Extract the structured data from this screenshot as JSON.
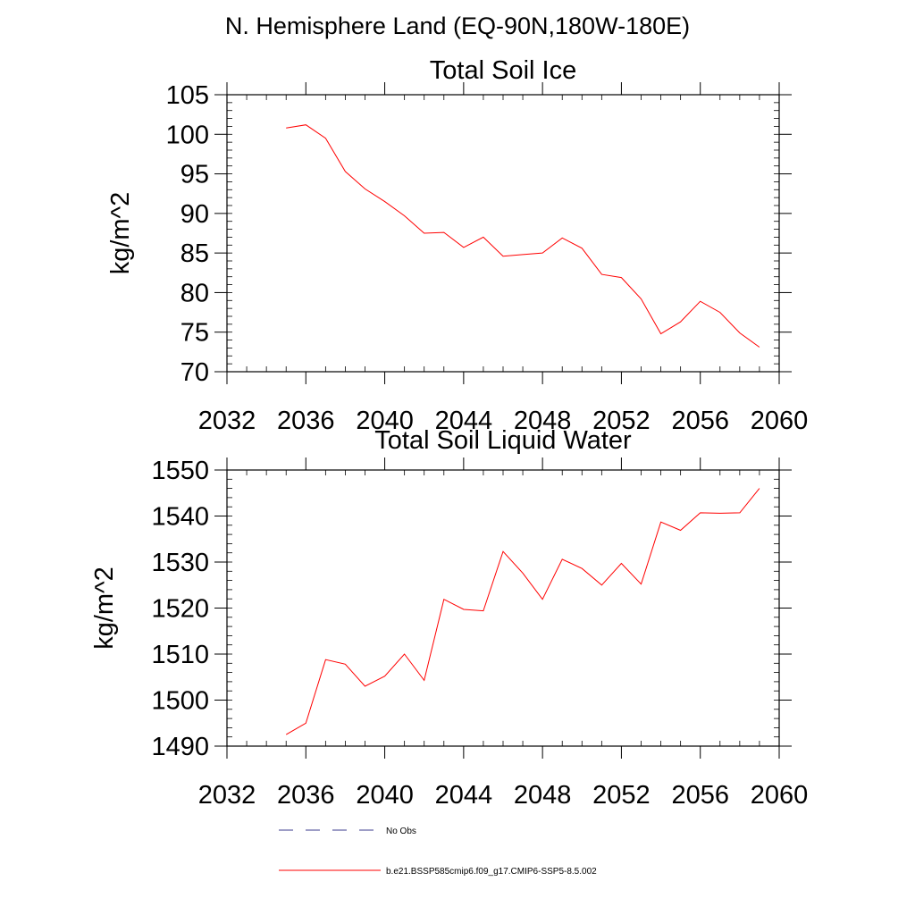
{
  "suptitle": "N. Hemisphere Land (EQ-90N,180W-180E)",
  "chart_data": [
    {
      "type": "line",
      "title": "Total Soil Ice",
      "xlabel": "",
      "ylabel": "kg/m^2",
      "xlim": [
        2032,
        2060
      ],
      "ylim": [
        70,
        105
      ],
      "xticks": [
        2032,
        2036,
        2040,
        2044,
        2048,
        2052,
        2056,
        2060
      ],
      "yticks": [
        70,
        75,
        80,
        85,
        90,
        95,
        100,
        105
      ],
      "grid": false,
      "series": [
        {
          "name": "b.e21.BSSP585cmip6.f09_g17.CMIP6-SSP5-8.5.002",
          "color": "#ff0000",
          "x": [
            2035,
            2036,
            2037,
            2038,
            2039,
            2040,
            2041,
            2042,
            2043,
            2044,
            2045,
            2046,
            2047,
            2048,
            2049,
            2050,
            2051,
            2052,
            2053,
            2054,
            2055,
            2056,
            2057,
            2058,
            2059
          ],
          "y": [
            100.8,
            101.2,
            99.5,
            95.3,
            93.1,
            91.5,
            89.7,
            87.5,
            87.6,
            85.7,
            87.0,
            84.6,
            84.8,
            85.0,
            86.9,
            85.6,
            82.3,
            81.9,
            79.2,
            74.8,
            76.3,
            78.9,
            77.5,
            74.9,
            73.1
          ]
        }
      ]
    },
    {
      "type": "line",
      "title": "Total Soil Liquid Water",
      "xlabel": "",
      "ylabel": "kg/m^2",
      "xlim": [
        2032,
        2060
      ],
      "ylim": [
        1490,
        1550
      ],
      "xticks": [
        2032,
        2036,
        2040,
        2044,
        2048,
        2052,
        2056,
        2060
      ],
      "yticks": [
        1490,
        1500,
        1510,
        1520,
        1530,
        1540,
        1550
      ],
      "grid": false,
      "series": [
        {
          "name": "b.e21.BSSP585cmip6.f09_g17.CMIP6-SSP5-8.5.002",
          "color": "#ff0000",
          "x": [
            2035,
            2036,
            2037,
            2038,
            2039,
            2040,
            2041,
            2042,
            2043,
            2044,
            2045,
            2046,
            2047,
            2048,
            2049,
            2050,
            2051,
            2052,
            2053,
            2054,
            2055,
            2056,
            2057,
            2058,
            2059
          ],
          "y": [
            1492.5,
            1495.0,
            1508.8,
            1507.8,
            1503.0,
            1505.2,
            1510.0,
            1504.3,
            1521.9,
            1519.7,
            1519.4,
            1532.3,
            1527.6,
            1521.9,
            1530.6,
            1528.6,
            1525.0,
            1529.7,
            1525.2,
            1538.7,
            1536.9,
            1540.7,
            1540.6,
            1540.7,
            1546.0
          ]
        }
      ]
    }
  ],
  "legend": {
    "placement": "bottom",
    "entries": [
      {
        "label": "No Obs",
        "color": "#3b3b8c",
        "style": "dashed"
      },
      {
        "label": "b.e21.BSSP585cmip6.f09_g17.CMIP6-SSP5-8.5.002",
        "color": "#ff0000",
        "style": "solid"
      }
    ]
  }
}
